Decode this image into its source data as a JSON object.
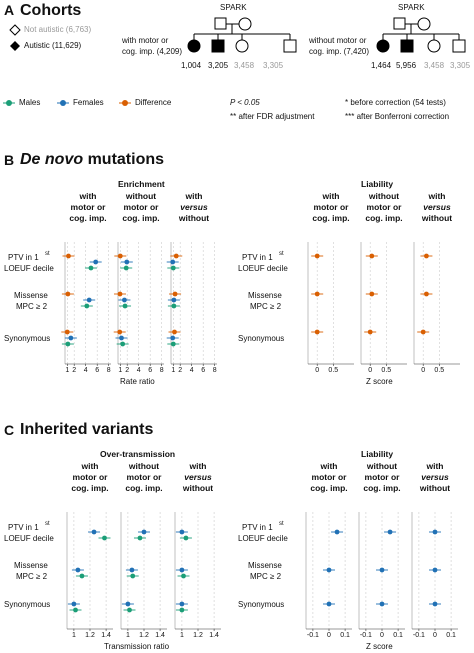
{
  "sectionA": {
    "letter": "A",
    "title": "Cohorts",
    "legend": [
      {
        "label": "Not autistic (6,763)",
        "shape": "diamond-open"
      },
      {
        "label": "Autistic (11,629)",
        "shape": "diamond-filled"
      }
    ],
    "pedigrees": [
      {
        "source": "SPARK",
        "label1": "with motor or",
        "label2": "cog. imp. (4,209)",
        "counts": [
          "1,004",
          "3,205",
          "3,458",
          "3,305"
        ]
      },
      {
        "source": "SPARK",
        "label1": "without motor or",
        "label2": "cog. imp. (7,420)",
        "counts": [
          "1,464",
          "5,956",
          "3,458",
          "3,305"
        ]
      }
    ]
  },
  "legendRow": {
    "items": [
      {
        "label": "Males",
        "color": "#1b9e77"
      },
      {
        "label": "Females",
        "color": "#2171b5"
      },
      {
        "label": "Difference",
        "color": "#d95f02"
      }
    ],
    "notes": [
      "P < 0.05",
      "** after FDR adjustment",
      "* before correction (54 tests)",
      "*** after Bonferroni correction"
    ]
  },
  "sectionB": {
    "letter": "B",
    "title_ital": "De novo",
    "title_rest": " mutations",
    "left_panel": "Enrichment",
    "right_panel": "Liability",
    "left_xlabel": "Rate ratio",
    "right_xlabel": "Z score",
    "left_ticks": [
      "1",
      "2",
      "4",
      "6",
      "8"
    ],
    "right_ticks": [
      "0",
      "0.5"
    ]
  },
  "sectionC": {
    "letter": "C",
    "title": "Inherited variants",
    "left_panel": "Over-transmission",
    "right_panel": "Liability",
    "left_xlabel": "Transmission ratio",
    "right_xlabel": "Z score",
    "left_ticks": [
      "1",
      "1.2",
      "1.4"
    ],
    "right_ticks": [
      "-0.1",
      "0",
      "0.1"
    ]
  },
  "columns": [
    {
      "l1": "with",
      "l2": "motor or",
      "l3": "cog. imp.",
      "italic3": false
    },
    {
      "l1": "without",
      "l2": "motor or",
      "l3": "cog. imp.",
      "italic3": false
    },
    {
      "l1": "with",
      "l2": "versus",
      "l3": "without",
      "italic2": true
    }
  ],
  "rows": {
    "ptv1": "PTV in 1",
    "ptv_sup": "st",
    "ptv2": "LOEUF decile",
    "mis1": "Missense",
    "mis2": "MPC ≥ 2",
    "syn": "Synonymous"
  },
  "chart_data": [
    {
      "type": "scatter",
      "title": "Enrichment",
      "xlabel": "Rate ratio",
      "panels": [
        "with motor or cog. imp.",
        "without motor or cog. imp.",
        "with versus without"
      ],
      "series": [
        {
          "name": "Difference",
          "values": [
            [
              1.2,
              1.1,
              1.0
            ],
            [
              1.0,
              0.95,
              0.9
            ],
            [
              1.5,
              1.3,
              1.2
            ]
          ]
        },
        {
          "name": "Females",
          "values": [
            [
              5.8,
              4.7,
              1.6
            ],
            [
              2.1,
              1.7,
              1.2
            ],
            [
              0.9,
              1.1,
              0.9
            ]
          ]
        },
        {
          "name": "Males",
          "values": [
            [
              5.0,
              4.3,
              1.1
            ],
            [
              2.0,
              1.8,
              1.4
            ],
            [
              1.0,
              1.1,
              1.0
            ]
          ]
        }
      ]
    },
    {
      "type": "scatter",
      "title": "Liability",
      "xlabel": "Z score",
      "panels": [
        "with motor or cog. imp.",
        "without motor or cog. imp.",
        "with versus without"
      ],
      "series": [
        {
          "name": "Difference",
          "values": [
            [
              0.0,
              0.0,
              0.0
            ],
            [
              0.05,
              0.05,
              0.0
            ],
            [
              0.1,
              0.1,
              0.0
            ]
          ]
        }
      ]
    },
    {
      "type": "scatter",
      "title": "Over-transmission",
      "xlabel": "Transmission ratio",
      "panels": [
        "with motor or cog. imp.",
        "without motor or cog. imp.",
        "with versus without"
      ],
      "series": [
        {
          "name": "Females",
          "values": [
            [
              1.25,
              1.05,
              1.0
            ],
            [
              1.2,
              1.05,
              1.0
            ],
            [
              1.0,
              1.0,
              1.0
            ]
          ]
        },
        {
          "name": "Males",
          "values": [
            [
              1.38,
              1.1,
              1.02
            ],
            [
              1.15,
              1.06,
              1.02
            ],
            [
              1.05,
              1.02,
              1.0
            ]
          ]
        }
      ]
    },
    {
      "type": "scatter",
      "title": "Liability",
      "xlabel": "Z score",
      "panels": [
        "with motor or cog. imp.",
        "without motor or cog. imp.",
        "with versus without"
      ],
      "series": [
        {
          "name": "Females",
          "values": [
            [
              0.05,
              0.0,
              0.0
            ],
            [
              0.05,
              0.0,
              0.0
            ],
            [
              0.0,
              0.0,
              0.0
            ]
          ]
        }
      ]
    }
  ]
}
